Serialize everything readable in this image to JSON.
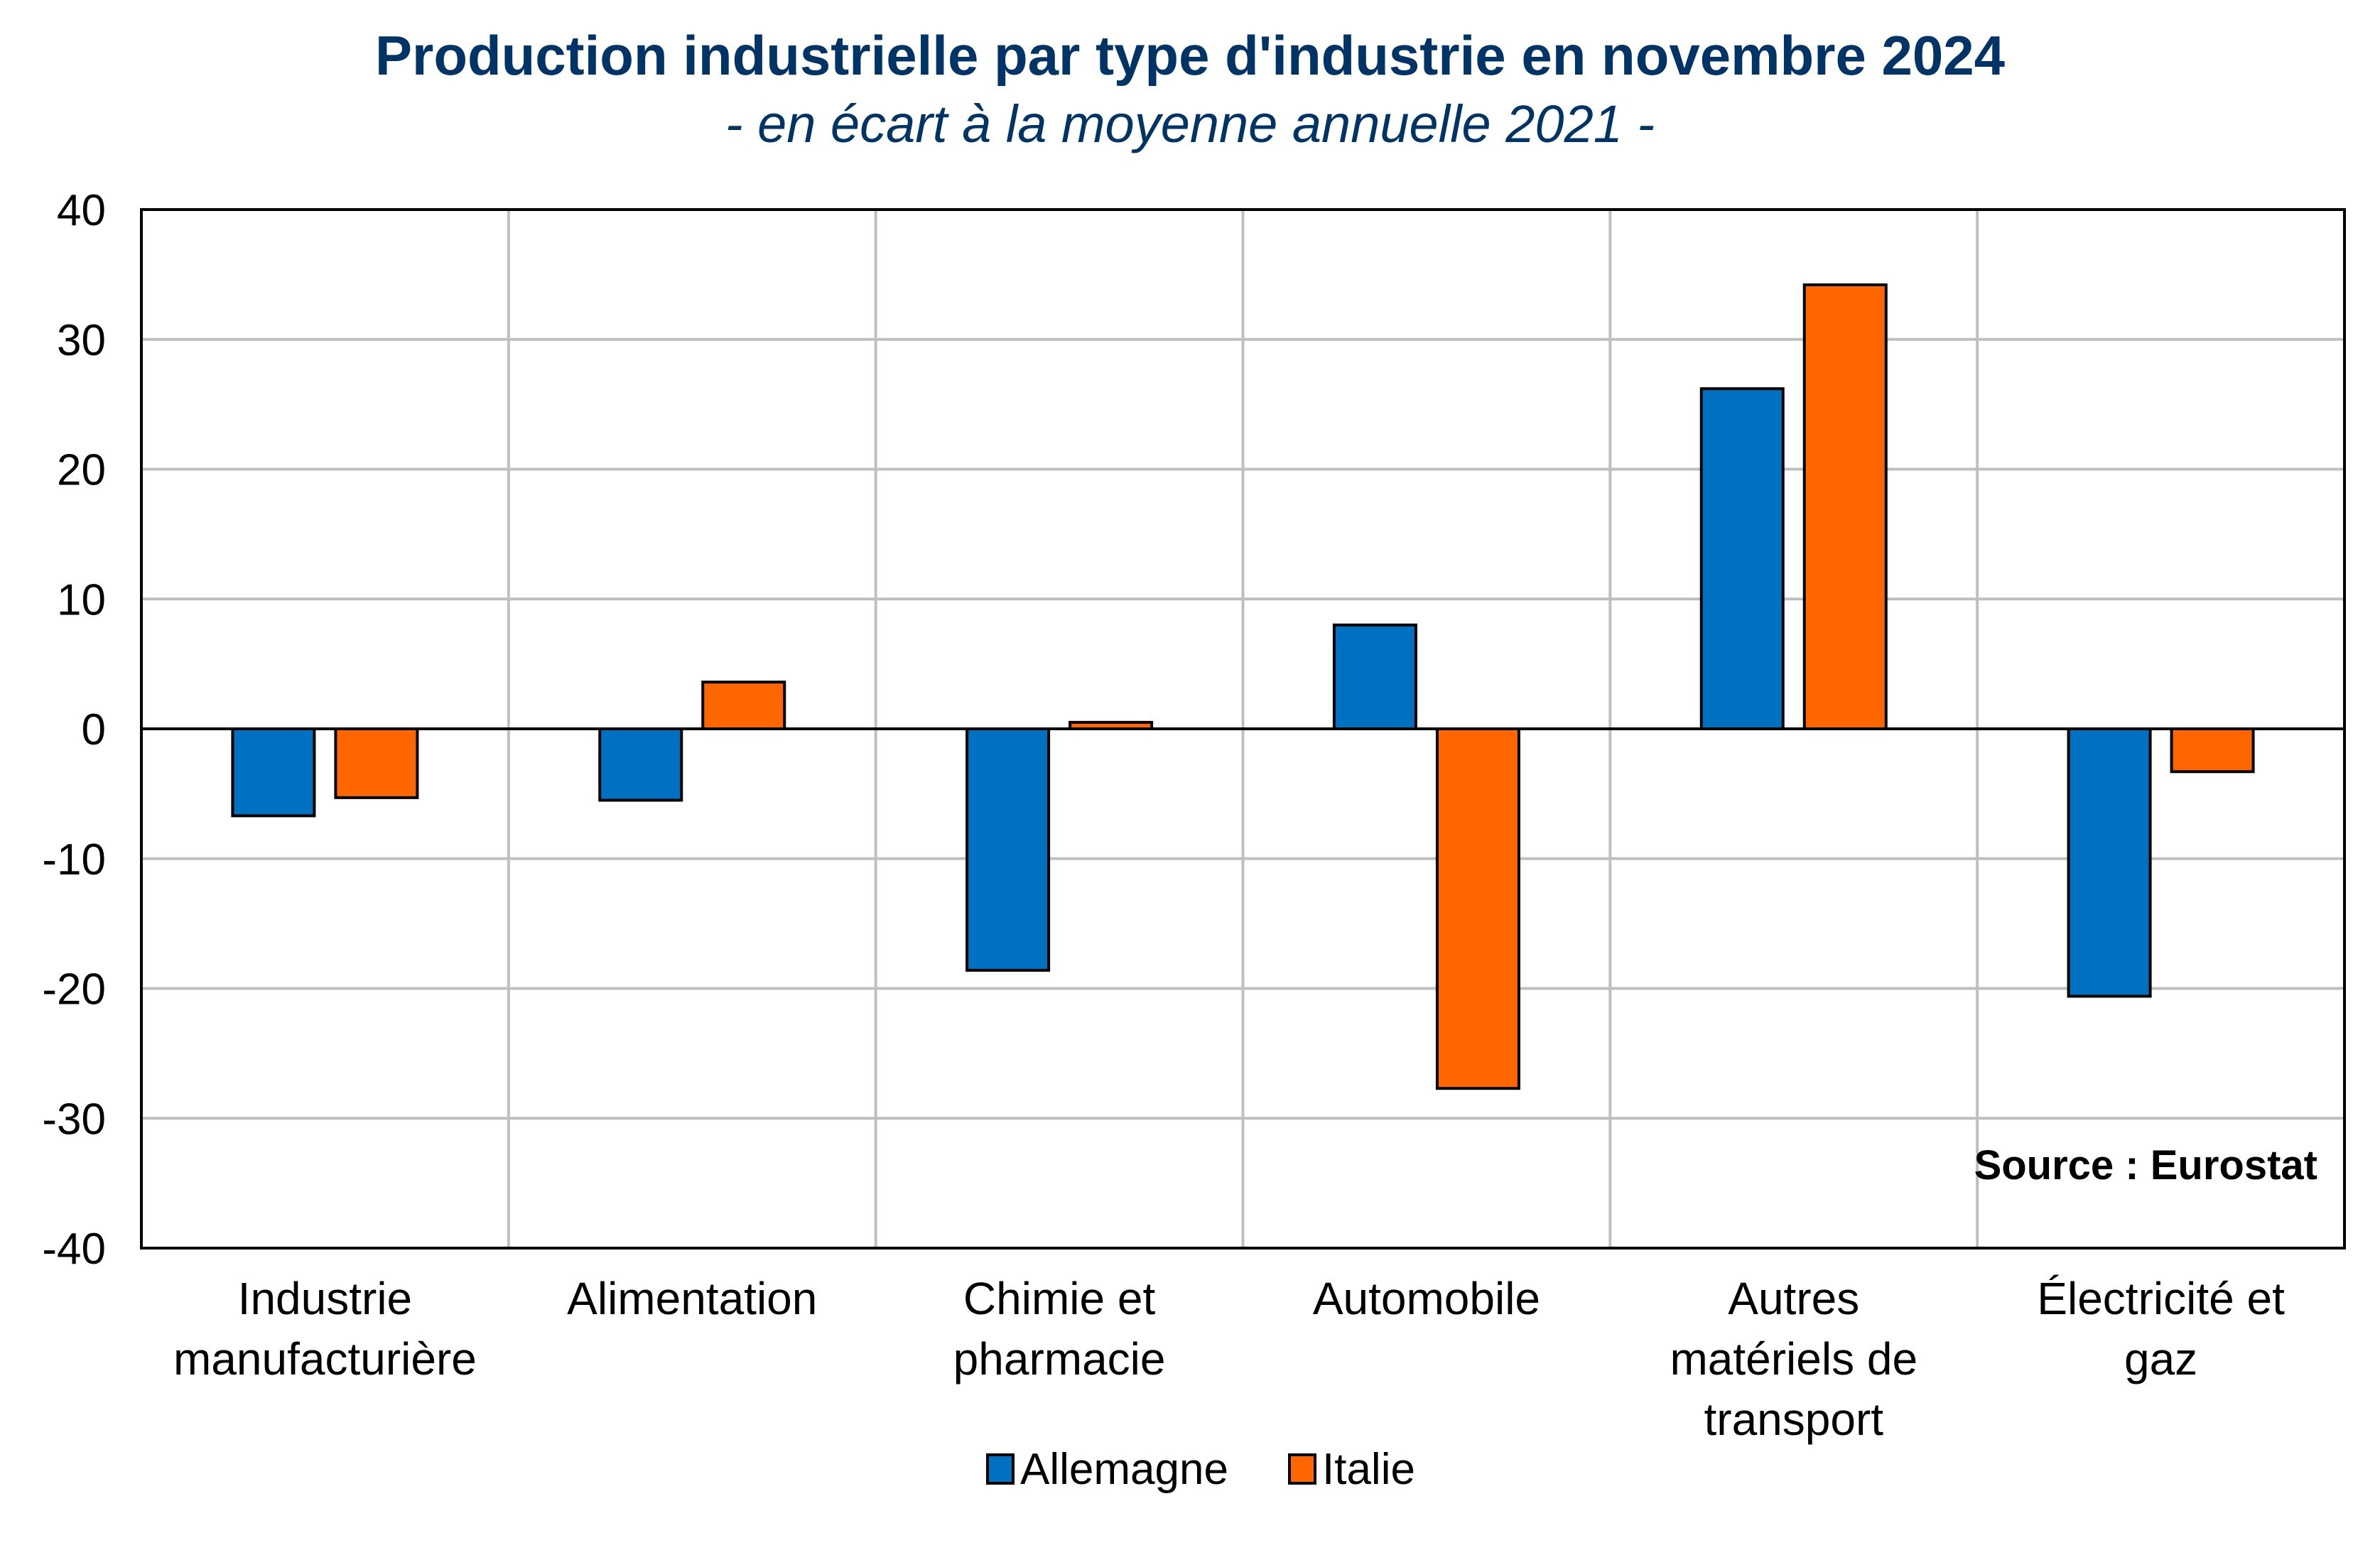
{
  "chart_data": {
    "type": "bar",
    "title": "Production industrielle par type d'industrie en novembre 2024",
    "subtitle": "- en écart à la moyenne annuelle 2021 -",
    "categories": [
      [
        "Industrie",
        "manufacturière"
      ],
      [
        "Alimentation"
      ],
      [
        "Chimie et",
        "pharmacie"
      ],
      [
        "Automobile"
      ],
      [
        "Autres",
        "matériels de",
        "transport"
      ],
      [
        "Électricité et",
        "gaz"
      ]
    ],
    "series": [
      {
        "name": "Allemagne",
        "color": "#0070C0",
        "values": [
          -6.7,
          -5.5,
          -18.6,
          8.0,
          26.2,
          -20.6
        ]
      },
      {
        "name": "Italie",
        "color": "#FF6600",
        "values": [
          -5.3,
          3.6,
          0.5,
          -27.7,
          34.2,
          -3.3
        ]
      }
    ],
    "ylim": [
      -40,
      40
    ],
    "yticks": [
      -40,
      -30,
      -20,
      -10,
      0,
      10,
      20,
      30,
      40
    ],
    "ytick_labels": [
      "-40",
      "-30",
      "-20",
      "-10",
      "0",
      "10",
      "20",
      "30",
      "40"
    ],
    "grid": true,
    "legend_position": "bottom",
    "annotation": "Source : Eurostat",
    "title_color": "#003366",
    "grid_color": "#BFBFBF"
  }
}
